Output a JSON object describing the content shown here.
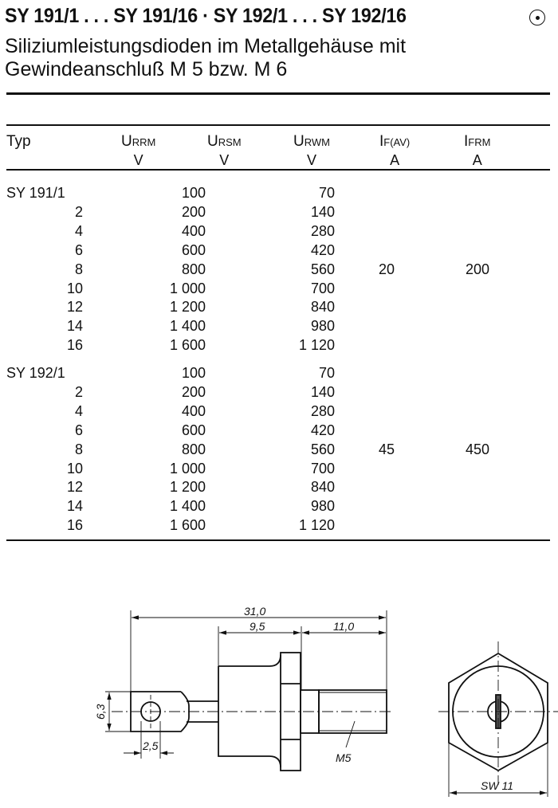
{
  "header": {
    "title": "SY 191/1 . . . SY 191/16 · SY 192/1 . . . SY 192/16",
    "symbol_icon": "circle-dot-icon",
    "subtitle_line1": "Siliziumleistungsdioden im Metallgehäuse mit",
    "subtitle_line2": "Gewindeanschluß M 5 bzw. M 6"
  },
  "table": {
    "columns": [
      {
        "key": "typ",
        "symbol": "Typ",
        "sub": "",
        "unit": ""
      },
      {
        "key": "urrm",
        "symbol": "U",
        "sub": "RRM",
        "unit": "V"
      },
      {
        "key": "ursm",
        "symbol": "U",
        "sub": "RSM",
        "unit": "V"
      },
      {
        "key": "urwm",
        "symbol": "U",
        "sub": "RWM",
        "unit": "V"
      },
      {
        "key": "ifav",
        "symbol": "I",
        "sub": "F(AV)",
        "unit": "A"
      },
      {
        "key": "ifrm",
        "symbol": "I",
        "sub": "FRM",
        "unit": "A"
      }
    ],
    "groups": [
      {
        "if_av": "20",
        "ifrm": "200",
        "rows": [
          {
            "typ": "SY 191/1",
            "urrm": "100",
            "urwm": "70"
          },
          {
            "typ": "2",
            "urrm": "200",
            "urwm": "140"
          },
          {
            "typ": "4",
            "urrm": "400",
            "urwm": "280"
          },
          {
            "typ": "6",
            "urrm": "600",
            "urwm": "420"
          },
          {
            "typ": "8",
            "urrm": "800",
            "urwm": "560"
          },
          {
            "typ": "10",
            "urrm": "1 000",
            "urwm": "700"
          },
          {
            "typ": "12",
            "urrm": "1 200",
            "urwm": "840"
          },
          {
            "typ": "14",
            "urrm": "1 400",
            "urwm": "980"
          },
          {
            "typ": "16",
            "urrm": "1 600",
            "urwm": "1 120"
          }
        ]
      },
      {
        "if_av": "45",
        "ifrm": "450",
        "rows": [
          {
            "typ": "SY 192/1",
            "urrm": "100",
            "urwm": "70"
          },
          {
            "typ": "2",
            "urrm": "200",
            "urwm": "140"
          },
          {
            "typ": "4",
            "urrm": "400",
            "urwm": "280"
          },
          {
            "typ": "6",
            "urrm": "600",
            "urwm": "420"
          },
          {
            "typ": "8",
            "urrm": "800",
            "urwm": "560"
          },
          {
            "typ": "10",
            "urrm": "1 000",
            "urwm": "700"
          },
          {
            "typ": "12",
            "urrm": "1 200",
            "urwm": "840"
          },
          {
            "typ": "14",
            "urrm": "1 400",
            "urwm": "980"
          },
          {
            "typ": "16",
            "urrm": "1 600",
            "urwm": "1 120"
          }
        ]
      }
    ]
  },
  "drawing": {
    "dim_total": "31,0",
    "dim_body": "9,5",
    "dim_thread": "11,0",
    "dim_lug_width": "6,3",
    "dim_hole": "2,5",
    "thread_label": "M5",
    "wrench_label": "SW 11"
  }
}
